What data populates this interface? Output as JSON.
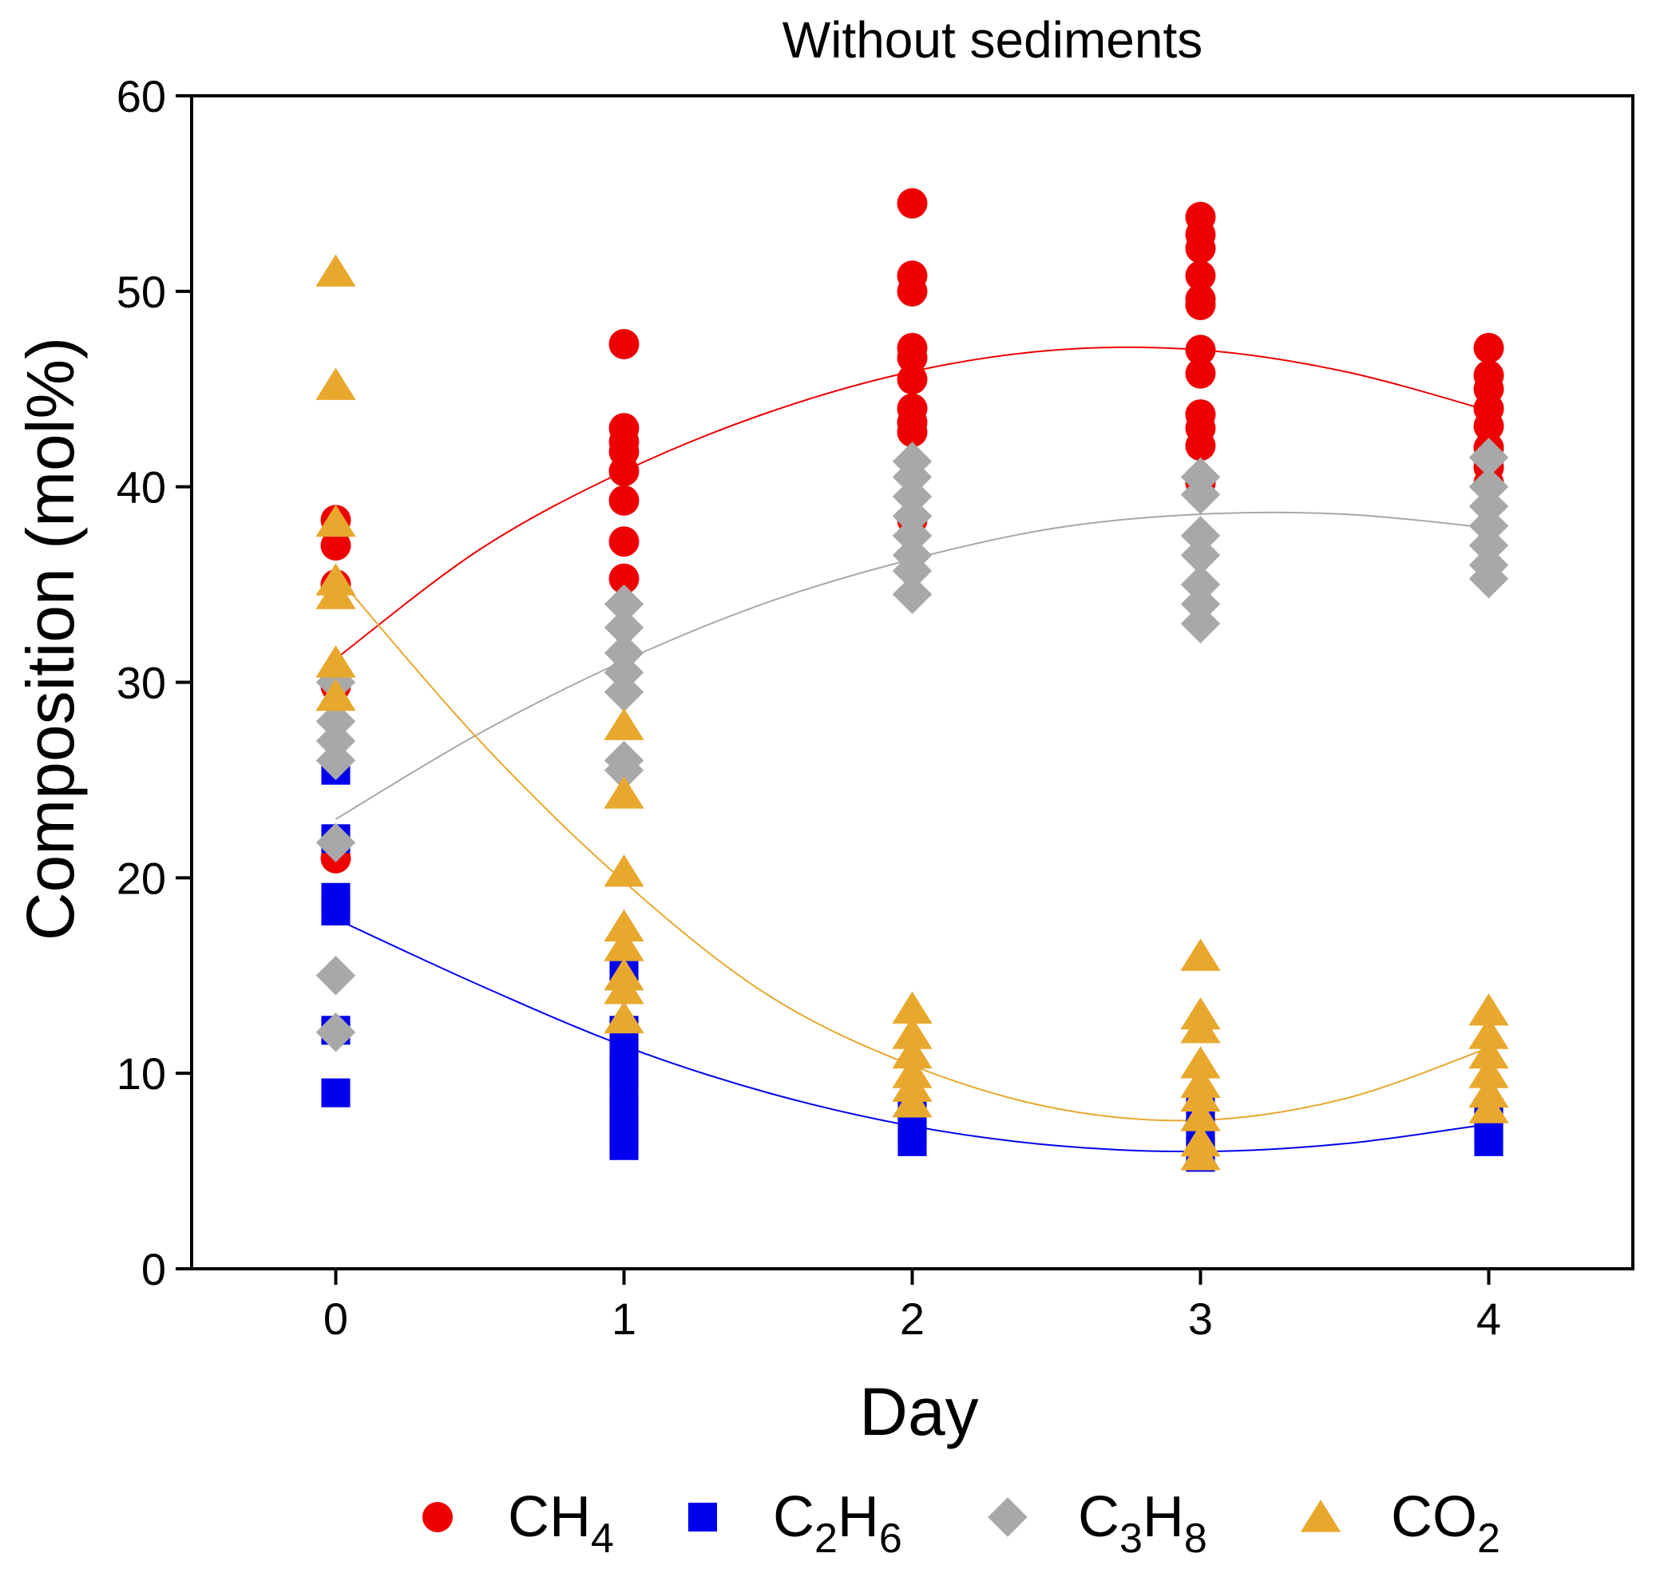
{
  "chart_data": {
    "type": "scatter",
    "title": "Without sediments",
    "xlabel": "Day",
    "ylabel": "Composition (mol%)",
    "xlim": [
      -0.5,
      4.5
    ],
    "ylim": [
      0,
      60
    ],
    "xticks": [
      0,
      1,
      2,
      3,
      4
    ],
    "yticks": [
      0,
      10,
      20,
      30,
      40,
      50,
      60
    ],
    "grid": false,
    "legend_position": "bottom",
    "series": [
      {
        "name": "CH4",
        "label_main": "CH",
        "label_sub": "4",
        "marker": "circle",
        "color": "#ee0000",
        "points": [
          [
            0,
            38.3
          ],
          [
            0,
            37.0
          ],
          [
            0,
            35.0
          ],
          [
            0,
            29.8
          ],
          [
            0,
            21.0
          ],
          [
            1,
            47.3
          ],
          [
            1,
            43.0
          ],
          [
            1,
            42.3
          ],
          [
            1,
            41.8
          ],
          [
            1,
            40.8
          ],
          [
            1,
            39.3
          ],
          [
            1,
            37.2
          ],
          [
            1,
            35.3
          ],
          [
            2,
            54.5
          ],
          [
            2,
            50.8
          ],
          [
            2,
            50.0
          ],
          [
            2,
            47.1
          ],
          [
            2,
            46.6
          ],
          [
            2,
            45.5
          ],
          [
            2,
            44.0
          ],
          [
            2,
            43.3
          ],
          [
            2,
            42.8
          ],
          [
            2,
            38.3
          ],
          [
            3,
            53.8
          ],
          [
            3,
            52.9
          ],
          [
            3,
            52.2
          ],
          [
            3,
            50.8
          ],
          [
            3,
            49.6
          ],
          [
            3,
            49.3
          ],
          [
            3,
            47.0
          ],
          [
            3,
            45.8
          ],
          [
            3,
            43.7
          ],
          [
            3,
            43.0
          ],
          [
            3,
            42.1
          ],
          [
            3,
            40.2
          ],
          [
            4,
            47.1
          ],
          [
            4,
            45.7
          ],
          [
            4,
            45.0
          ],
          [
            4,
            44.0
          ],
          [
            4,
            43.1
          ],
          [
            4,
            42.0
          ],
          [
            4,
            41.0
          ],
          [
            4,
            40.2
          ]
        ],
        "fit": {
          "x": [
            0,
            0.5,
            1,
            1.5,
            2,
            2.5,
            3,
            3.5,
            4
          ],
          "y": [
            31.2,
            36.8,
            40.8,
            43.8,
            45.9,
            47.0,
            47.0,
            45.9,
            43.9
          ]
        }
      },
      {
        "name": "C2H6",
        "label_main": "C",
        "label_sub": "2",
        "label_main2": "H",
        "label_sub2": "6",
        "marker": "square",
        "color": "#0000ee",
        "points": [
          [
            0,
            25.5
          ],
          [
            0,
            22.0
          ],
          [
            0,
            19.0
          ],
          [
            0,
            18.3
          ],
          [
            0,
            12.2
          ],
          [
            0,
            9.0
          ],
          [
            1,
            15.3
          ],
          [
            1,
            12.2
          ],
          [
            1,
            11.0
          ],
          [
            1,
            10.0
          ],
          [
            1,
            9.0
          ],
          [
            1,
            8.0
          ],
          [
            1,
            7.0
          ],
          [
            1,
            6.3
          ],
          [
            2,
            8.0
          ],
          [
            2,
            7.2
          ],
          [
            2,
            6.5
          ],
          [
            3,
            8.0
          ],
          [
            3,
            7.0
          ],
          [
            3,
            6.0
          ],
          [
            3,
            5.7
          ],
          [
            4,
            8.0
          ],
          [
            4,
            7.0
          ],
          [
            4,
            6.5
          ]
        ],
        "fit": {
          "x": [
            0,
            0.5,
            1,
            1.5,
            2,
            2.5,
            3,
            3.5,
            4
          ],
          "y": [
            17.9,
            14.5,
            11.4,
            9.0,
            7.3,
            6.3,
            6.0,
            6.4,
            7.4
          ]
        }
      },
      {
        "name": "C3H8",
        "label_main": "C",
        "label_sub": "3",
        "label_main2": "H",
        "label_sub2": "8",
        "marker": "diamond",
        "color": "#a8a8a8",
        "points": [
          [
            0,
            30.0
          ],
          [
            0,
            28.0
          ],
          [
            0,
            27.0
          ],
          [
            0,
            26.0
          ],
          [
            0,
            21.8
          ],
          [
            0,
            15.0
          ],
          [
            0,
            12.1
          ],
          [
            1,
            34.0
          ],
          [
            1,
            32.8
          ],
          [
            1,
            31.5
          ],
          [
            1,
            30.5
          ],
          [
            1,
            29.5
          ],
          [
            1,
            26.0
          ],
          [
            1,
            25.5
          ],
          [
            2,
            41.3
          ],
          [
            2,
            40.5
          ],
          [
            2,
            39.5
          ],
          [
            2,
            38.5
          ],
          [
            2,
            37.5
          ],
          [
            2,
            36.5
          ],
          [
            2,
            35.7
          ],
          [
            2,
            34.5
          ],
          [
            3,
            40.5
          ],
          [
            3,
            39.6
          ],
          [
            3,
            37.5
          ],
          [
            3,
            36.5
          ],
          [
            3,
            35.0
          ],
          [
            3,
            34.0
          ],
          [
            3,
            33.0
          ],
          [
            4,
            41.5
          ],
          [
            4,
            40.0
          ],
          [
            4,
            39.0
          ],
          [
            4,
            38.0
          ],
          [
            4,
            37.0
          ],
          [
            4,
            36.0
          ],
          [
            4,
            35.3
          ]
        ],
        "fit": {
          "x": [
            0,
            0.5,
            1,
            1.5,
            2,
            2.5,
            3,
            3.5,
            4
          ],
          "y": [
            23.0,
            27.4,
            31.1,
            34.1,
            36.3,
            37.9,
            38.6,
            38.6,
            37.9
          ]
        }
      },
      {
        "name": "CO2",
        "label_main": "CO",
        "label_sub": "2",
        "marker": "triangle",
        "color": "#e8a82e",
        "points": [
          [
            0,
            51.0
          ],
          [
            0,
            45.2
          ],
          [
            0,
            38.2
          ],
          [
            0,
            35.2
          ],
          [
            0,
            34.5
          ],
          [
            0,
            31.0
          ],
          [
            0,
            29.3
          ],
          [
            1,
            27.8
          ],
          [
            1,
            24.3
          ],
          [
            1,
            20.3
          ],
          [
            1,
            17.5
          ],
          [
            1,
            16.5
          ],
          [
            1,
            15.0
          ],
          [
            1,
            14.3
          ],
          [
            1,
            12.8
          ],
          [
            2,
            13.3
          ],
          [
            2,
            12.0
          ],
          [
            2,
            11.0
          ],
          [
            2,
            10.0
          ],
          [
            2,
            9.3
          ],
          [
            2,
            8.5
          ],
          [
            3,
            16.0
          ],
          [
            3,
            13.0
          ],
          [
            3,
            12.3
          ],
          [
            3,
            10.5
          ],
          [
            3,
            9.5
          ],
          [
            3,
            8.8
          ],
          [
            3,
            7.8
          ],
          [
            3,
            6.5
          ],
          [
            3,
            5.8
          ],
          [
            4,
            13.2
          ],
          [
            4,
            12.0
          ],
          [
            4,
            11.0
          ],
          [
            4,
            10.0
          ],
          [
            4,
            9.0
          ],
          [
            4,
            8.2
          ]
        ],
        "fit": {
          "x": [
            0,
            0.5,
            1,
            1.5,
            2,
            2.5,
            3,
            3.5,
            4
          ],
          "y": [
            35.5,
            27.0,
            19.8,
            14.0,
            10.4,
            8.2,
            7.6,
            8.7,
            11.3
          ]
        }
      }
    ]
  }
}
